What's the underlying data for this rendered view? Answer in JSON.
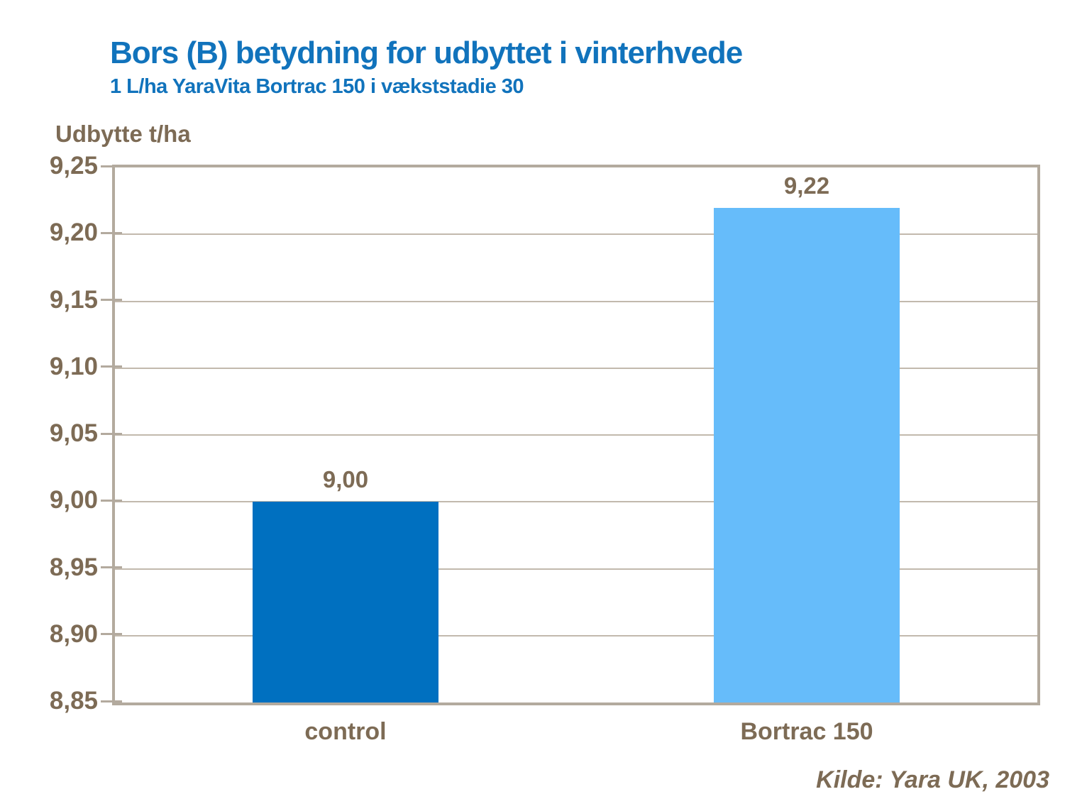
{
  "page": {
    "title": "Bors (B) betydning for udbyttet i vinterhvede",
    "subtitle": "1 L/ha YaraVita Bortrac 150 i vækststadie 30",
    "y_axis_title": "Udbytte t/ha",
    "source": "Kilde: Yara UK, 2003"
  },
  "colors": {
    "title_blue": "#1173BC",
    "text_brown": "#7D6B55",
    "plot_border_tan": "#B3AA9E",
    "gridline_tan": "#C2B9AD",
    "bar_control_blue": "#0070C0",
    "bar_bortrac_blue": "#66BCFA",
    "background": "#FFFFFF"
  },
  "chart_data": {
    "type": "bar",
    "title": "Bors (B) betydning for udbyttet i vinterhvede",
    "subtitle": "1 L/ha YaraVita Bortrac 150 i vækststadie 30",
    "xlabel": "",
    "ylabel": "Udbytte t/ha",
    "categories": [
      "control",
      "Bortrac 150"
    ],
    "values": [
      9.0,
      9.22
    ],
    "value_labels": [
      "9,00",
      "9,22"
    ],
    "bar_colors": [
      "#0070C0",
      "#66BCFA"
    ],
    "ylim": [
      8.85,
      9.25
    ],
    "ytick_step": 0.05,
    "ytick_labels_bottom_to_top": [
      "8,85",
      "8,90",
      "8,95",
      "9,00",
      "9,05",
      "9,10",
      "9,15",
      "9,20",
      "9,25"
    ],
    "grid": true,
    "legend": false,
    "source": "Kilde: Yara UK, 2003",
    "decimal_separator": ","
  }
}
